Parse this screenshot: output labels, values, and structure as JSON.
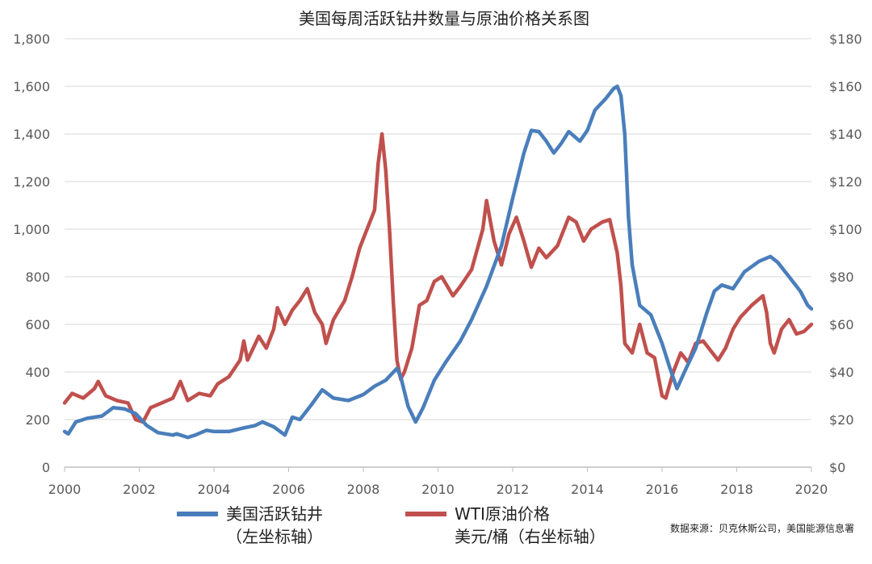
{
  "chart_data": {
    "type": "line",
    "title": "美国每周活跃钻井数量与原油价格关系图",
    "source": "数据来源：贝克休斯公司，美国能源信息署",
    "grid": true,
    "legend_placement": "bottom",
    "x_ticks": [
      "2000",
      "2002",
      "2004",
      "2006",
      "2008",
      "2010",
      "2012",
      "2014",
      "2016",
      "2018",
      "2020"
    ],
    "y_left_ticks": [
      "0",
      "200",
      "400",
      "600",
      "800",
      "1,000",
      "1,200",
      "1,400",
      "1,600",
      "1,800"
    ],
    "y_right_ticks": [
      "$0",
      "$20",
      "$40",
      "$60",
      "$80",
      "$100",
      "$120",
      "$140",
      "$160",
      "$180"
    ],
    "xlim": [
      2000,
      2020
    ],
    "ylim_left": [
      0,
      1800
    ],
    "ylim_right": [
      0,
      180
    ],
    "series": [
      {
        "name_line1": "美国活跃钻井",
        "name_line2": "（左坐标轴）",
        "axis": "left",
        "color": "#4a7ebb",
        "points": [
          [
            2000.0,
            150
          ],
          [
            2000.1,
            140
          ],
          [
            2000.3,
            190
          ],
          [
            2000.6,
            205
          ],
          [
            2001.0,
            215
          ],
          [
            2001.3,
            250
          ],
          [
            2001.6,
            245
          ],
          [
            2001.9,
            225
          ],
          [
            2002.2,
            175
          ],
          [
            2002.5,
            145
          ],
          [
            2002.9,
            135
          ],
          [
            2003.0,
            140
          ],
          [
            2003.3,
            125
          ],
          [
            2003.5,
            135
          ],
          [
            2003.8,
            155
          ],
          [
            2004.0,
            150
          ],
          [
            2004.4,
            150
          ],
          [
            2004.8,
            165
          ],
          [
            2005.1,
            175
          ],
          [
            2005.3,
            190
          ],
          [
            2005.6,
            170
          ],
          [
            2005.9,
            135
          ],
          [
            2006.1,
            210
          ],
          [
            2006.3,
            200
          ],
          [
            2006.6,
            260
          ],
          [
            2006.9,
            325
          ],
          [
            2007.2,
            290
          ],
          [
            2007.6,
            280
          ],
          [
            2008.0,
            305
          ],
          [
            2008.3,
            340
          ],
          [
            2008.6,
            365
          ],
          [
            2008.9,
            415
          ],
          [
            2009.0,
            380
          ],
          [
            2009.2,
            255
          ],
          [
            2009.4,
            190
          ],
          [
            2009.6,
            250
          ],
          [
            2009.9,
            365
          ],
          [
            2010.2,
            440
          ],
          [
            2010.6,
            530
          ],
          [
            2010.9,
            620
          ],
          [
            2011.3,
            760
          ],
          [
            2011.7,
            930
          ],
          [
            2012.0,
            1130
          ],
          [
            2012.3,
            1320
          ],
          [
            2012.5,
            1415
          ],
          [
            2012.7,
            1410
          ],
          [
            2012.9,
            1370
          ],
          [
            2013.1,
            1320
          ],
          [
            2013.3,
            1360
          ],
          [
            2013.5,
            1410
          ],
          [
            2013.8,
            1370
          ],
          [
            2014.0,
            1415
          ],
          [
            2014.2,
            1500
          ],
          [
            2014.5,
            1550
          ],
          [
            2014.7,
            1590
          ],
          [
            2014.8,
            1600
          ],
          [
            2014.9,
            1560
          ],
          [
            2015.0,
            1400
          ],
          [
            2015.1,
            1050
          ],
          [
            2015.2,
            850
          ],
          [
            2015.4,
            680
          ],
          [
            2015.7,
            640
          ],
          [
            2016.0,
            520
          ],
          [
            2016.2,
            420
          ],
          [
            2016.4,
            330
          ],
          [
            2016.6,
            400
          ],
          [
            2016.9,
            500
          ],
          [
            2017.2,
            650
          ],
          [
            2017.4,
            740
          ],
          [
            2017.6,
            765
          ],
          [
            2017.9,
            750
          ],
          [
            2018.2,
            820
          ],
          [
            2018.6,
            865
          ],
          [
            2018.9,
            885
          ],
          [
            2019.1,
            860
          ],
          [
            2019.4,
            800
          ],
          [
            2019.7,
            740
          ],
          [
            2019.9,
            680
          ],
          [
            2020.0,
            665
          ]
        ]
      },
      {
        "name_line1": "WTI原油价格",
        "name_line2": "美元/桶（右坐标轴）",
        "axis": "right",
        "color": "#c0504d",
        "points": [
          [
            2000.0,
            27
          ],
          [
            2000.2,
            31
          ],
          [
            2000.5,
            29
          ],
          [
            2000.8,
            33
          ],
          [
            2000.9,
            36
          ],
          [
            2001.1,
            30
          ],
          [
            2001.4,
            28
          ],
          [
            2001.7,
            27
          ],
          [
            2001.9,
            20
          ],
          [
            2002.1,
            19
          ],
          [
            2002.3,
            25
          ],
          [
            2002.6,
            27
          ],
          [
            2002.9,
            29
          ],
          [
            2003.1,
            36
          ],
          [
            2003.3,
            28
          ],
          [
            2003.6,
            31
          ],
          [
            2003.9,
            30
          ],
          [
            2004.1,
            35
          ],
          [
            2004.4,
            38
          ],
          [
            2004.7,
            45
          ],
          [
            2004.8,
            53
          ],
          [
            2004.9,
            45
          ],
          [
            2005.2,
            55
          ],
          [
            2005.4,
            50
          ],
          [
            2005.6,
            58
          ],
          [
            2005.7,
            67
          ],
          [
            2005.9,
            60
          ],
          [
            2006.1,
            66
          ],
          [
            2006.3,
            70
          ],
          [
            2006.5,
            75
          ],
          [
            2006.7,
            65
          ],
          [
            2006.9,
            60
          ],
          [
            2007.0,
            52
          ],
          [
            2007.2,
            62
          ],
          [
            2007.5,
            70
          ],
          [
            2007.7,
            80
          ],
          [
            2007.9,
            92
          ],
          [
            2008.1,
            100
          ],
          [
            2008.3,
            108
          ],
          [
            2008.4,
            128
          ],
          [
            2008.5,
            140
          ],
          [
            2008.6,
            125
          ],
          [
            2008.7,
            100
          ],
          [
            2008.8,
            70
          ],
          [
            2008.9,
            45
          ],
          [
            2009.0,
            37
          ],
          [
            2009.1,
            40
          ],
          [
            2009.3,
            50
          ],
          [
            2009.5,
            68
          ],
          [
            2009.7,
            70
          ],
          [
            2009.9,
            78
          ],
          [
            2010.1,
            80
          ],
          [
            2010.4,
            72
          ],
          [
            2010.6,
            76
          ],
          [
            2010.9,
            83
          ],
          [
            2011.2,
            100
          ],
          [
            2011.3,
            112
          ],
          [
            2011.5,
            95
          ],
          [
            2011.7,
            85
          ],
          [
            2011.9,
            98
          ],
          [
            2012.1,
            105
          ],
          [
            2012.3,
            95
          ],
          [
            2012.5,
            84
          ],
          [
            2012.7,
            92
          ],
          [
            2012.9,
            88
          ],
          [
            2013.2,
            93
          ],
          [
            2013.5,
            105
          ],
          [
            2013.7,
            103
          ],
          [
            2013.9,
            95
          ],
          [
            2014.1,
            100
          ],
          [
            2014.4,
            103
          ],
          [
            2014.6,
            104
          ],
          [
            2014.8,
            90
          ],
          [
            2014.9,
            76
          ],
          [
            2015.0,
            52
          ],
          [
            2015.2,
            48
          ],
          [
            2015.4,
            60
          ],
          [
            2015.6,
            48
          ],
          [
            2015.8,
            46
          ],
          [
            2016.0,
            30
          ],
          [
            2016.1,
            29
          ],
          [
            2016.3,
            40
          ],
          [
            2016.5,
            48
          ],
          [
            2016.7,
            44
          ],
          [
            2016.9,
            52
          ],
          [
            2017.1,
            53
          ],
          [
            2017.3,
            49
          ],
          [
            2017.5,
            45
          ],
          [
            2017.7,
            50
          ],
          [
            2017.9,
            58
          ],
          [
            2018.1,
            63
          ],
          [
            2018.4,
            68
          ],
          [
            2018.7,
            72
          ],
          [
            2018.8,
            65
          ],
          [
            2018.9,
            52
          ],
          [
            2019.0,
            48
          ],
          [
            2019.2,
            58
          ],
          [
            2019.4,
            62
          ],
          [
            2019.6,
            56
          ],
          [
            2019.8,
            57
          ],
          [
            2020.0,
            60
          ]
        ]
      }
    ]
  },
  "colors": {
    "grid": "#d9d9d9",
    "axis": "#bfbfbf",
    "tick_text": "#595959"
  }
}
